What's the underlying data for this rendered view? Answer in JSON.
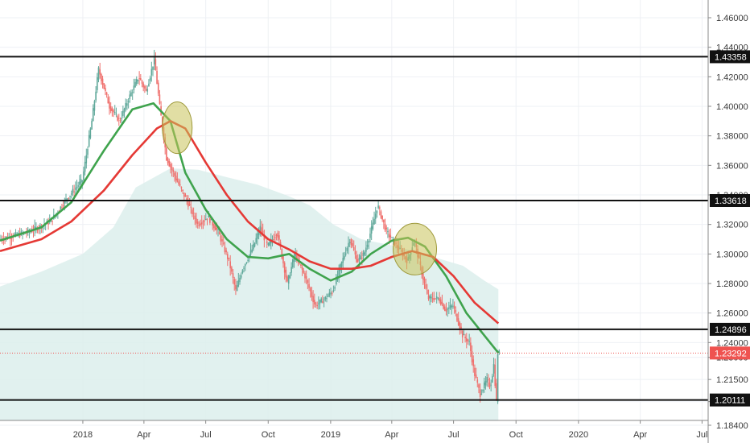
{
  "chart_data": {
    "type": "candlestick",
    "title": "",
    "x_axis": {
      "type": "date",
      "range": [
        "2017-09-01",
        "2020-07-10"
      ],
      "tick_labels": [
        {
          "date": "2018-01-01",
          "label": "2018"
        },
        {
          "date": "2018-04-01",
          "label": "Apr"
        },
        {
          "date": "2018-07-01",
          "label": "Jul"
        },
        {
          "date": "2018-10-01",
          "label": "Oct"
        },
        {
          "date": "2019-01-01",
          "label": "2019"
        },
        {
          "date": "2019-04-01",
          "label": "Apr"
        },
        {
          "date": "2019-07-01",
          "label": "Jul"
        },
        {
          "date": "2019-10-01",
          "label": "Oct"
        },
        {
          "date": "2020-01-01",
          "label": "2020"
        },
        {
          "date": "2020-04-01",
          "label": "Apr"
        },
        {
          "date": "2020-07-01",
          "label": "Jul"
        }
      ]
    },
    "y_axis": {
      "side": "right",
      "range": [
        1.172,
        1.472
      ],
      "tick_labels": [
        "1.46000",
        "1.44000",
        "1.42000",
        "1.40000",
        "1.38000",
        "1.36000",
        "1.34000",
        "1.32000",
        "1.30000",
        "1.28000",
        "1.26000",
        "1.24000",
        "1.23000",
        "1.21500",
        "1.20000",
        "1.18400"
      ],
      "tick_values": [
        1.46,
        1.44,
        1.42,
        1.4,
        1.38,
        1.36,
        1.34,
        1.32,
        1.3,
        1.28,
        1.26,
        1.24,
        1.23,
        1.215,
        1.2,
        1.184
      ]
    },
    "grid": true,
    "price_series": {
      "last_date": "2019-09-05",
      "last_close": 1.23292,
      "points": [
        [
          "2017-09-01",
          1.31
        ],
        [
          "2017-10-15",
          1.315
        ],
        [
          "2017-11-15",
          1.322
        ],
        [
          "2017-12-10",
          1.338
        ],
        [
          "2018-01-01",
          1.35
        ],
        [
          "2018-01-15",
          1.39
        ],
        [
          "2018-01-25",
          1.425
        ],
        [
          "2018-02-10",
          1.4
        ],
        [
          "2018-02-25",
          1.39
        ],
        [
          "2018-03-10",
          1.405
        ],
        [
          "2018-03-25",
          1.42
        ],
        [
          "2018-04-05",
          1.41
        ],
        [
          "2018-04-17",
          1.432
        ],
        [
          "2018-04-25",
          1.4
        ],
        [
          "2018-05-05",
          1.365
        ],
        [
          "2018-05-20",
          1.35
        ],
        [
          "2018-06-05",
          1.335
        ],
        [
          "2018-06-20",
          1.32
        ],
        [
          "2018-07-05",
          1.325
        ],
        [
          "2018-07-20",
          1.315
        ],
        [
          "2018-08-05",
          1.295
        ],
        [
          "2018-08-15",
          1.275
        ],
        [
          "2018-08-25",
          1.29
        ],
        [
          "2018-09-10",
          1.305
        ],
        [
          "2018-09-20",
          1.318
        ],
        [
          "2018-10-01",
          1.305
        ],
        [
          "2018-10-15",
          1.315
        ],
        [
          "2018-10-30",
          1.28
        ],
        [
          "2018-11-10",
          1.3
        ],
        [
          "2018-11-25",
          1.285
        ],
        [
          "2018-12-10",
          1.265
        ],
        [
          "2018-12-25",
          1.27
        ],
        [
          "2019-01-05",
          1.275
        ],
        [
          "2019-01-15",
          1.29
        ],
        [
          "2019-01-30",
          1.31
        ],
        [
          "2019-02-10",
          1.295
        ],
        [
          "2019-02-20",
          1.3
        ],
        [
          "2019-03-05",
          1.32
        ],
        [
          "2019-03-12",
          1.333
        ],
        [
          "2019-03-25",
          1.315
        ],
        [
          "2019-04-10",
          1.305
        ],
        [
          "2019-04-25",
          1.295
        ],
        [
          "2019-05-05",
          1.31
        ],
        [
          "2019-05-12",
          1.295
        ],
        [
          "2019-05-25",
          1.27
        ],
        [
          "2019-06-10",
          1.27
        ],
        [
          "2019-06-20",
          1.262
        ],
        [
          "2019-07-01",
          1.265
        ],
        [
          "2019-07-15",
          1.245
        ],
        [
          "2019-07-25",
          1.24
        ],
        [
          "2019-08-01",
          1.22
        ],
        [
          "2019-08-10",
          1.205
        ],
        [
          "2019-08-20",
          1.215
        ],
        [
          "2019-08-25",
          1.21
        ],
        [
          "2019-08-30",
          1.225
        ],
        [
          "2019-09-03",
          1.2
        ],
        [
          "2019-09-05",
          1.23292
        ]
      ]
    },
    "moving_averages": [
      {
        "color": "#3fa34d",
        "points": [
          [
            "2017-09-01",
            1.309
          ],
          [
            "2017-11-01",
            1.318
          ],
          [
            "2017-12-15",
            1.335
          ],
          [
            "2018-02-01",
            1.37
          ],
          [
            "2018-03-15",
            1.398
          ],
          [
            "2018-04-15",
            1.402
          ],
          [
            "2018-05-10",
            1.39
          ],
          [
            "2018-06-01",
            1.355
          ],
          [
            "2018-07-01",
            1.33
          ],
          [
            "2018-08-01",
            1.31
          ],
          [
            "2018-09-01",
            1.298
          ],
          [
            "2018-10-01",
            1.297
          ],
          [
            "2018-11-01",
            1.3
          ],
          [
            "2018-12-01",
            1.29
          ],
          [
            "2019-01-01",
            1.282
          ],
          [
            "2019-02-01",
            1.288
          ],
          [
            "2019-03-01",
            1.3
          ],
          [
            "2019-04-01",
            1.309
          ],
          [
            "2019-04-25",
            1.311
          ],
          [
            "2019-05-20",
            1.305
          ],
          [
            "2019-06-20",
            1.285
          ],
          [
            "2019-07-20",
            1.26
          ],
          [
            "2019-08-15",
            1.245
          ],
          [
            "2019-09-05",
            1.233
          ]
        ]
      },
      {
        "color": "#e53935",
        "points": [
          [
            "2017-09-01",
            1.302
          ],
          [
            "2017-11-01",
            1.31
          ],
          [
            "2017-12-15",
            1.322
          ],
          [
            "2018-02-01",
            1.343
          ],
          [
            "2018-03-15",
            1.367
          ],
          [
            "2018-04-20",
            1.385
          ],
          [
            "2018-05-10",
            1.39
          ],
          [
            "2018-06-01",
            1.385
          ],
          [
            "2018-07-01",
            1.362
          ],
          [
            "2018-08-01",
            1.34
          ],
          [
            "2018-09-01",
            1.322
          ],
          [
            "2018-10-01",
            1.31
          ],
          [
            "2018-11-01",
            1.303
          ],
          [
            "2018-12-01",
            1.295
          ],
          [
            "2019-01-01",
            1.29
          ],
          [
            "2019-02-01",
            1.29
          ],
          [
            "2019-03-01",
            1.292
          ],
          [
            "2019-04-01",
            1.298
          ],
          [
            "2019-05-01",
            1.302
          ],
          [
            "2019-06-01",
            1.298
          ],
          [
            "2019-07-01",
            1.285
          ],
          [
            "2019-08-01",
            1.267
          ],
          [
            "2019-09-05",
            1.253
          ]
        ]
      }
    ],
    "background_area": {
      "color": "#dcefec",
      "points": [
        [
          "2017-09-01",
          1.278
        ],
        [
          "2017-11-01",
          1.288
        ],
        [
          "2018-01-01",
          1.3
        ],
        [
          "2018-02-15",
          1.318
        ],
        [
          "2018-03-20",
          1.345
        ],
        [
          "2018-05-10",
          1.358
        ],
        [
          "2018-06-20",
          1.357
        ],
        [
          "2018-08-01",
          1.352
        ],
        [
          "2018-09-15",
          1.347
        ],
        [
          "2018-11-01",
          1.339
        ],
        [
          "2018-12-01",
          1.333
        ],
        [
          "2019-01-05",
          1.32
        ],
        [
          "2019-02-15",
          1.31
        ],
        [
          "2019-04-10",
          1.305
        ],
        [
          "2019-06-01",
          1.298
        ],
        [
          "2019-07-15",
          1.292
        ],
        [
          "2019-08-15",
          1.282
        ],
        [
          "2019-09-05",
          1.276
        ]
      ]
    },
    "horizontal_lines": [
      {
        "value": 1.43358,
        "label": "1.43358"
      },
      {
        "value": 1.33618,
        "label": "1.33618"
      },
      {
        "value": 1.24896,
        "label": "1.24896"
      },
      {
        "value": 1.20111,
        "label": "1.20111"
      }
    ],
    "last_price_label": {
      "value": 1.23292,
      "label": "1.23292",
      "color": "#ef5350"
    },
    "annotations": [
      {
        "type": "ellipse",
        "center_date": "2018-05-20",
        "center_value": 1.3855,
        "half_width_days": 22,
        "half_height_value": 0.0175,
        "color": "#c9c25a"
      },
      {
        "type": "ellipse",
        "center_date": "2019-05-05",
        "center_value": 1.3033,
        "half_width_days": 32,
        "half_height_value": 0.0175,
        "color": "#c9c25a"
      }
    ]
  }
}
